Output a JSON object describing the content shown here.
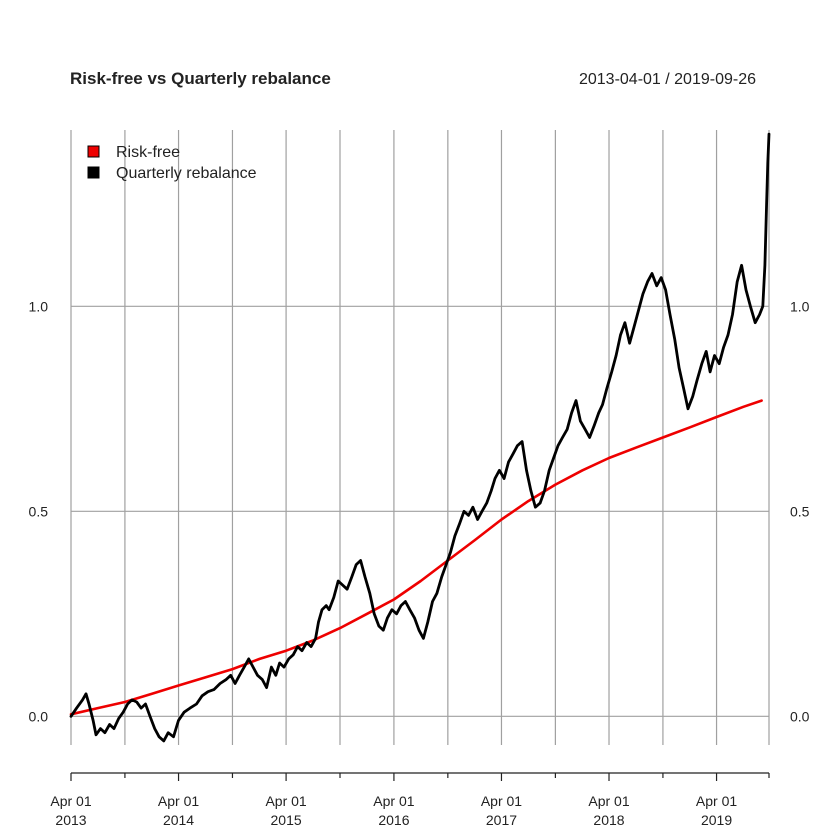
{
  "chart_data": {
    "type": "line",
    "title": "Risk-free vs Quarterly rebalance",
    "date_range": "2013-04-01 / 2019-09-26",
    "x_range": [
      "2013-04-01",
      "2019-09-26"
    ],
    "y_ticks": [
      0.0,
      0.5,
      1.0
    ],
    "y_tick_labels": [
      "0.0",
      "0.5",
      "1.0"
    ],
    "ylim": [
      -0.07,
      1.43
    ],
    "grid": true,
    "legend_position": "top-left",
    "x_ticks": [
      {
        "date": "2013-04-01",
        "label_line1": "Apr 01",
        "label_line2": "2013"
      },
      {
        "date": "2014-04-01",
        "label_line1": "Apr 01",
        "label_line2": "2014"
      },
      {
        "date": "2015-04-01",
        "label_line1": "Apr 01",
        "label_line2": "2015"
      },
      {
        "date": "2016-04-01",
        "label_line1": "Apr 01",
        "label_line2": "2016"
      },
      {
        "date": "2017-04-01",
        "label_line1": "Apr 01",
        "label_line2": "2017"
      },
      {
        "date": "2018-04-01",
        "label_line1": "Apr 01",
        "label_line2": "2018"
      },
      {
        "date": "2019-04-01",
        "label_line1": "Apr 01",
        "label_line2": "2019"
      }
    ],
    "x_minor_ticks": [
      "2013-10-01",
      "2014-10-01",
      "2015-10-01",
      "2016-10-01",
      "2017-10-01",
      "2018-10-01",
      "2019-09-26"
    ],
    "series": [
      {
        "name": "Risk-free",
        "color": "#ee0000",
        "points": [
          [
            "2013-04-01",
            0.005
          ],
          [
            "2013-07-01",
            0.02
          ],
          [
            "2013-10-01",
            0.035
          ],
          [
            "2014-01-01",
            0.055
          ],
          [
            "2014-04-01",
            0.075
          ],
          [
            "2014-07-01",
            0.095
          ],
          [
            "2014-10-01",
            0.115
          ],
          [
            "2015-01-01",
            0.14
          ],
          [
            "2015-04-01",
            0.16
          ],
          [
            "2015-07-01",
            0.185
          ],
          [
            "2015-10-01",
            0.215
          ],
          [
            "2016-01-01",
            0.25
          ],
          [
            "2016-04-01",
            0.285
          ],
          [
            "2016-07-01",
            0.33
          ],
          [
            "2016-10-01",
            0.38
          ],
          [
            "2017-01-01",
            0.43
          ],
          [
            "2017-04-01",
            0.48
          ],
          [
            "2017-07-01",
            0.525
          ],
          [
            "2017-10-01",
            0.565
          ],
          [
            "2018-01-01",
            0.6
          ],
          [
            "2018-04-01",
            0.63
          ],
          [
            "2018-07-01",
            0.655
          ],
          [
            "2018-10-01",
            0.68
          ],
          [
            "2019-01-01",
            0.705
          ],
          [
            "2019-04-01",
            0.73
          ],
          [
            "2019-07-01",
            0.755
          ],
          [
            "2019-09-01",
            0.77
          ]
        ]
      },
      {
        "name": "Quarterly rebalance",
        "color": "#000000",
        "points": [
          [
            "2013-04-01",
            0.0
          ],
          [
            "2013-04-20",
            0.02
          ],
          [
            "2013-05-10",
            0.04
          ],
          [
            "2013-05-22",
            0.055
          ],
          [
            "2013-06-01",
            0.03
          ],
          [
            "2013-06-15",
            -0.01
          ],
          [
            "2013-06-25",
            -0.045
          ],
          [
            "2013-07-10",
            -0.03
          ],
          [
            "2013-07-25",
            -0.04
          ],
          [
            "2013-08-10",
            -0.02
          ],
          [
            "2013-08-25",
            -0.03
          ],
          [
            "2013-09-10",
            -0.005
          ],
          [
            "2013-09-25",
            0.01
          ],
          [
            "2013-10-10",
            0.03
          ],
          [
            "2013-10-25",
            0.04
          ],
          [
            "2013-11-10",
            0.035
          ],
          [
            "2013-11-25",
            0.02
          ],
          [
            "2013-12-10",
            0.03
          ],
          [
            "2013-12-25",
            0.0
          ],
          [
            "2014-01-10",
            -0.03
          ],
          [
            "2014-01-25",
            -0.05
          ],
          [
            "2014-02-10",
            -0.06
          ],
          [
            "2014-02-25",
            -0.04
          ],
          [
            "2014-03-15",
            -0.05
          ],
          [
            "2014-04-01",
            -0.01
          ],
          [
            "2014-04-20",
            0.01
          ],
          [
            "2014-05-10",
            0.02
          ],
          [
            "2014-06-01",
            0.03
          ],
          [
            "2014-06-20",
            0.05
          ],
          [
            "2014-07-10",
            0.06
          ],
          [
            "2014-07-30",
            0.065
          ],
          [
            "2014-08-20",
            0.08
          ],
          [
            "2014-09-10",
            0.09
          ],
          [
            "2014-09-25",
            0.1
          ],
          [
            "2014-10-10",
            0.08
          ],
          [
            "2014-10-25",
            0.1
          ],
          [
            "2014-11-10",
            0.12
          ],
          [
            "2014-11-25",
            0.14
          ],
          [
            "2014-12-10",
            0.12
          ],
          [
            "2014-12-25",
            0.1
          ],
          [
            "2015-01-10",
            0.09
          ],
          [
            "2015-01-25",
            0.07
          ],
          [
            "2015-02-10",
            0.12
          ],
          [
            "2015-02-25",
            0.1
          ],
          [
            "2015-03-10",
            0.13
          ],
          [
            "2015-03-25",
            0.12
          ],
          [
            "2015-04-10",
            0.14
          ],
          [
            "2015-04-25",
            0.15
          ],
          [
            "2015-05-10",
            0.17
          ],
          [
            "2015-05-25",
            0.16
          ],
          [
            "2015-06-10",
            0.18
          ],
          [
            "2015-06-25",
            0.17
          ],
          [
            "2015-07-10",
            0.19
          ],
          [
            "2015-07-20",
            0.23
          ],
          [
            "2015-08-01",
            0.26
          ],
          [
            "2015-08-15",
            0.27
          ],
          [
            "2015-08-25",
            0.26
          ],
          [
            "2015-09-10",
            0.29
          ],
          [
            "2015-09-25",
            0.33
          ],
          [
            "2015-10-10",
            0.32
          ],
          [
            "2015-10-25",
            0.31
          ],
          [
            "2015-11-10",
            0.34
          ],
          [
            "2015-11-25",
            0.37
          ],
          [
            "2015-12-10",
            0.38
          ],
          [
            "2015-12-25",
            0.34
          ],
          [
            "2016-01-10",
            0.3
          ],
          [
            "2016-01-25",
            0.25
          ],
          [
            "2016-02-10",
            0.22
          ],
          [
            "2016-02-25",
            0.21
          ],
          [
            "2016-03-10",
            0.24
          ],
          [
            "2016-03-25",
            0.26
          ],
          [
            "2016-04-10",
            0.25
          ],
          [
            "2016-04-25",
            0.27
          ],
          [
            "2016-05-10",
            0.28
          ],
          [
            "2016-05-25",
            0.26
          ],
          [
            "2016-06-10",
            0.24
          ],
          [
            "2016-06-25",
            0.21
          ],
          [
            "2016-07-10",
            0.19
          ],
          [
            "2016-07-25",
            0.23
          ],
          [
            "2016-08-10",
            0.28
          ],
          [
            "2016-08-25",
            0.3
          ],
          [
            "2016-09-10",
            0.34
          ],
          [
            "2016-09-25",
            0.37
          ],
          [
            "2016-10-10",
            0.4
          ],
          [
            "2016-10-25",
            0.44
          ],
          [
            "2016-11-10",
            0.47
          ],
          [
            "2016-11-25",
            0.5
          ],
          [
            "2016-12-10",
            0.49
          ],
          [
            "2016-12-25",
            0.51
          ],
          [
            "2017-01-10",
            0.48
          ],
          [
            "2017-01-25",
            0.5
          ],
          [
            "2017-02-10",
            0.52
          ],
          [
            "2017-02-25",
            0.55
          ],
          [
            "2017-03-10",
            0.58
          ],
          [
            "2017-03-25",
            0.6
          ],
          [
            "2017-04-10",
            0.58
          ],
          [
            "2017-04-25",
            0.62
          ],
          [
            "2017-05-10",
            0.64
          ],
          [
            "2017-05-25",
            0.66
          ],
          [
            "2017-06-10",
            0.67
          ],
          [
            "2017-06-25",
            0.6
          ],
          [
            "2017-07-10",
            0.55
          ],
          [
            "2017-07-25",
            0.51
          ],
          [
            "2017-08-10",
            0.52
          ],
          [
            "2017-08-25",
            0.55
          ],
          [
            "2017-09-10",
            0.6
          ],
          [
            "2017-09-25",
            0.63
          ],
          [
            "2017-10-10",
            0.66
          ],
          [
            "2017-10-25",
            0.68
          ],
          [
            "2017-11-10",
            0.7
          ],
          [
            "2017-11-25",
            0.74
          ],
          [
            "2017-12-10",
            0.77
          ],
          [
            "2017-12-25",
            0.72
          ],
          [
            "2018-01-10",
            0.7
          ],
          [
            "2018-01-25",
            0.68
          ],
          [
            "2018-02-10",
            0.71
          ],
          [
            "2018-02-25",
            0.74
          ],
          [
            "2018-03-10",
            0.76
          ],
          [
            "2018-03-25",
            0.8
          ],
          [
            "2018-04-10",
            0.84
          ],
          [
            "2018-04-25",
            0.88
          ],
          [
            "2018-05-10",
            0.93
          ],
          [
            "2018-05-25",
            0.96
          ],
          [
            "2018-06-10",
            0.91
          ],
          [
            "2018-06-25",
            0.95
          ],
          [
            "2018-07-10",
            0.99
          ],
          [
            "2018-07-25",
            1.03
          ],
          [
            "2018-08-10",
            1.06
          ],
          [
            "2018-08-25",
            1.08
          ],
          [
            "2018-09-10",
            1.05
          ],
          [
            "2018-09-25",
            1.07
          ],
          [
            "2018-10-10",
            1.04
          ],
          [
            "2018-10-25",
            0.98
          ],
          [
            "2018-11-10",
            0.92
          ],
          [
            "2018-11-25",
            0.85
          ],
          [
            "2018-12-10",
            0.8
          ],
          [
            "2018-12-25",
            0.75
          ],
          [
            "2019-01-10",
            0.78
          ],
          [
            "2019-01-25",
            0.82
          ],
          [
            "2019-02-10",
            0.86
          ],
          [
            "2019-02-25",
            0.89
          ],
          [
            "2019-03-10",
            0.84
          ],
          [
            "2019-03-25",
            0.88
          ],
          [
            "2019-04-10",
            0.86
          ],
          [
            "2019-04-25",
            0.9
          ],
          [
            "2019-05-10",
            0.93
          ],
          [
            "2019-05-25",
            0.98
          ],
          [
            "2019-06-10",
            1.06
          ],
          [
            "2019-06-25",
            1.1
          ],
          [
            "2019-07-10",
            1.04
          ],
          [
            "2019-07-25",
            1.0
          ],
          [
            "2019-08-10",
            0.96
          ],
          [
            "2019-08-25",
            0.98
          ],
          [
            "2019-09-05",
            1.0
          ],
          [
            "2019-09-12",
            1.1
          ],
          [
            "2019-09-18",
            1.25
          ],
          [
            "2019-09-22",
            1.35
          ],
          [
            "2019-09-26",
            1.42
          ]
        ]
      }
    ]
  }
}
